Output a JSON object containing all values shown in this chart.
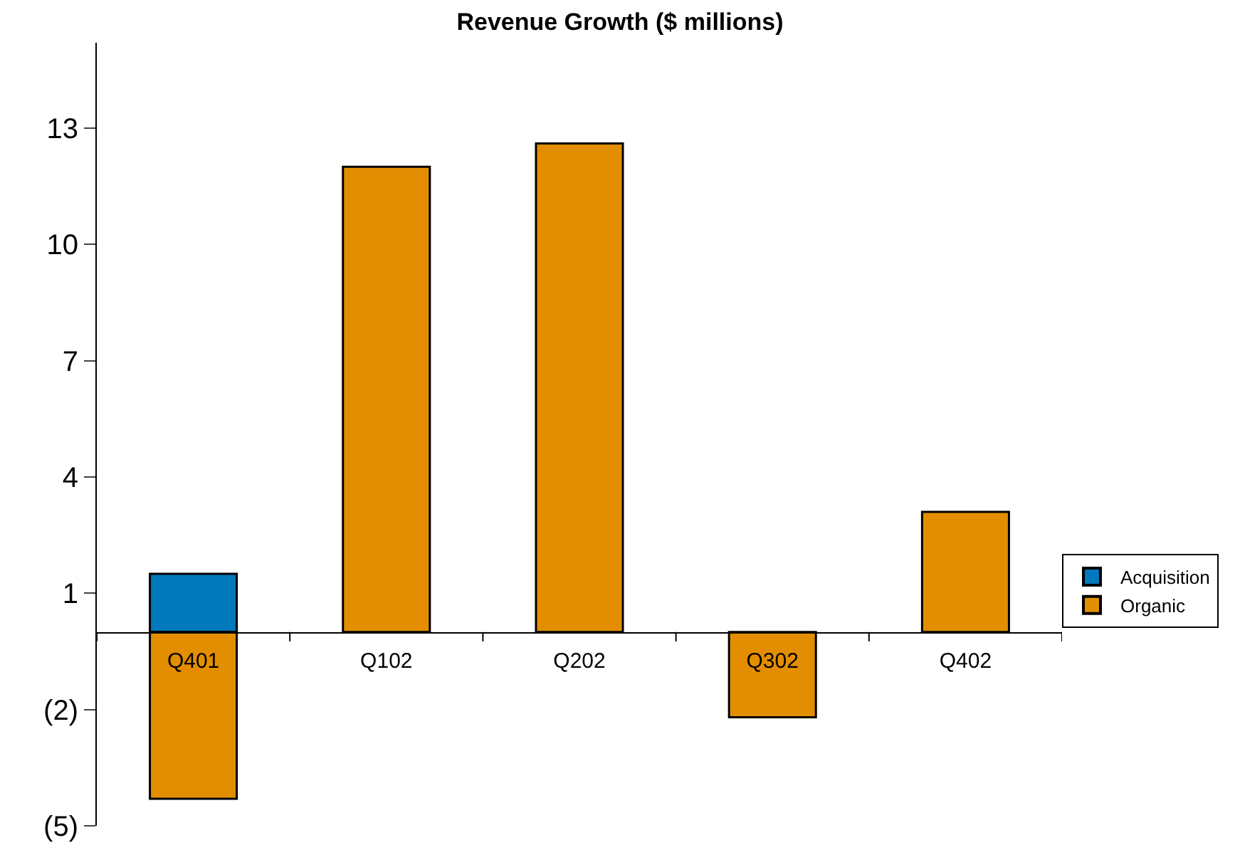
{
  "chart_data": {
    "type": "bar",
    "title": "Revenue Growth ($ millions)",
    "stacked": true,
    "categories": [
      "Q401",
      "Q102",
      "Q202",
      "Q302",
      "Q402"
    ],
    "series": [
      {
        "name": "Acquisition",
        "color": "#0079bd",
        "values": [
          1.5,
          null,
          null,
          null,
          null
        ]
      },
      {
        "name": "Organic",
        "color": "#e38e00",
        "values": [
          -4.3,
          12.0,
          12.6,
          -2.2,
          3.1
        ]
      }
    ],
    "ylim": [
      -5,
      15.2
    ],
    "yticks": [
      {
        "value": -5,
        "label": "(5)"
      },
      {
        "value": -2,
        "label": "(2)"
      },
      1,
      4,
      7,
      10,
      13
    ],
    "legend": "right"
  }
}
